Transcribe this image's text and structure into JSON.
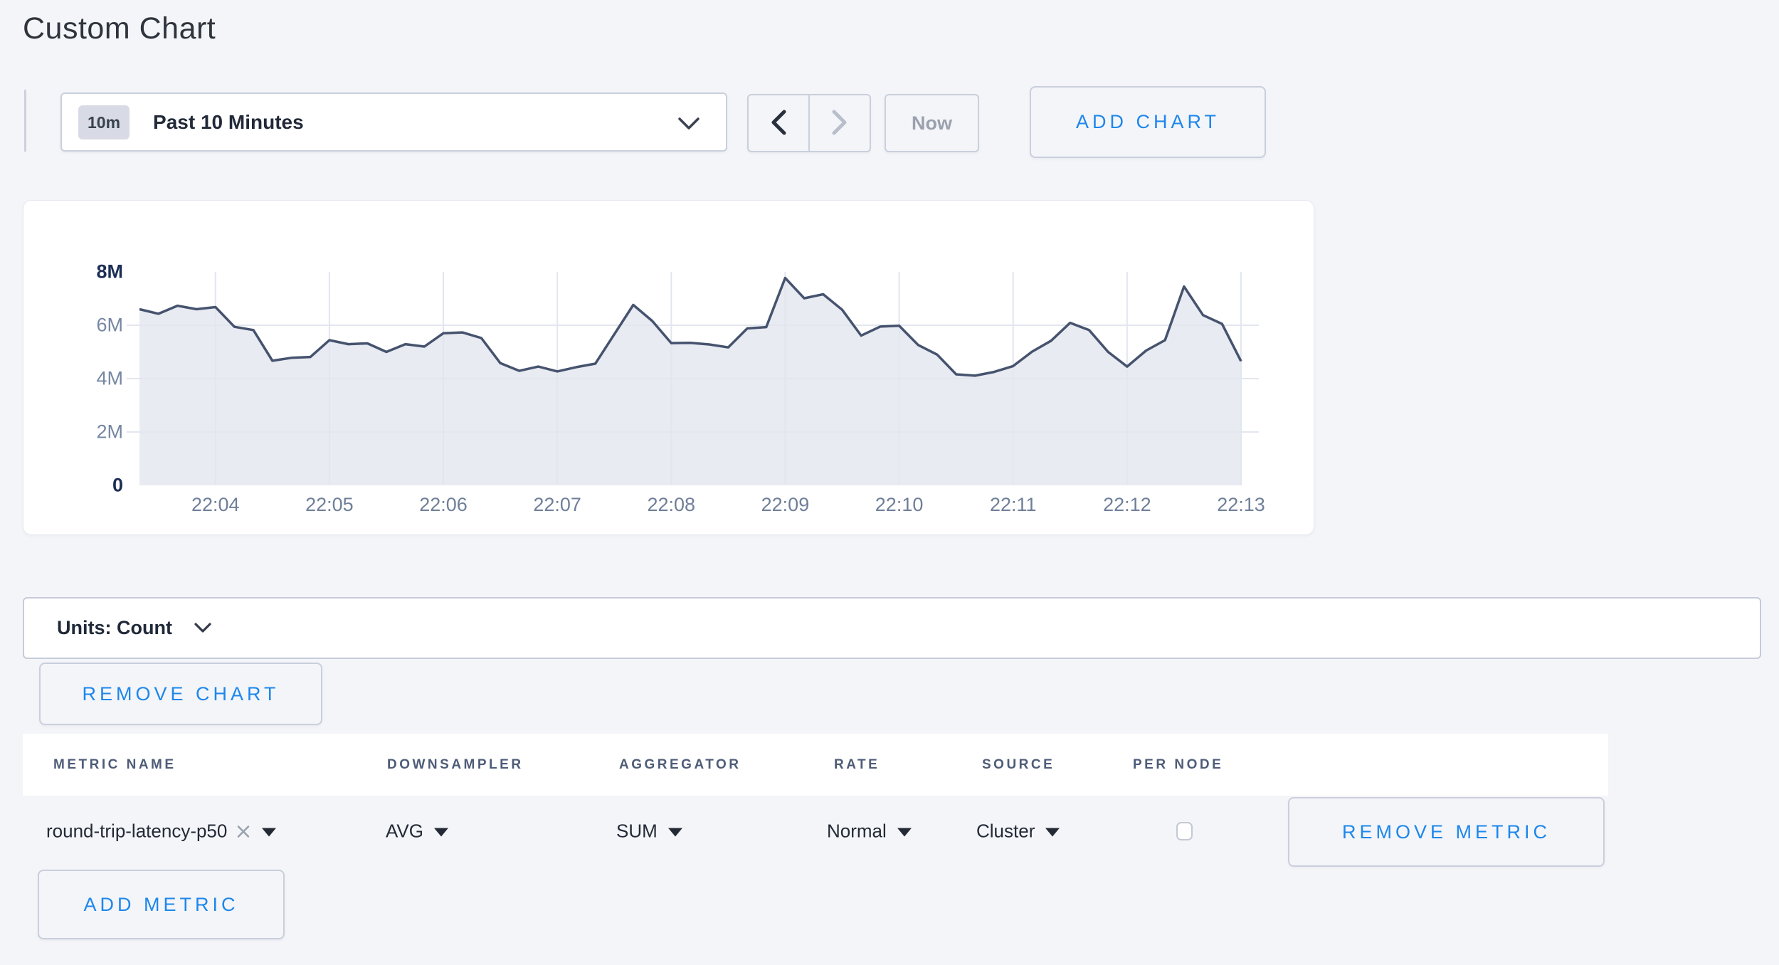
{
  "title": "Custom Chart",
  "toolbar": {
    "range_badge": "10m",
    "range_label": "Past 10 Minutes",
    "now_label": "Now",
    "add_chart_label": "ADD CHART"
  },
  "chart_controls": {
    "units_label": "Units: Count",
    "remove_chart_label": "REMOVE CHART"
  },
  "metrics_table": {
    "columns": [
      "METRIC NAME",
      "DOWNSAMPLER",
      "AGGREGATOR",
      "RATE",
      "SOURCE",
      "PER NODE"
    ],
    "row": {
      "metric_name": "round-trip-latency-p50",
      "downsampler": "AVG",
      "aggregator": "SUM",
      "rate": "Normal",
      "source": "Cluster",
      "per_node_checked": false
    },
    "remove_metric_label": "REMOVE METRIC",
    "add_metric_label": "ADD METRIC"
  },
  "colors": {
    "accent_blue": "#1d87ec",
    "chart_line": "#46536e",
    "chart_fill": "#e9ebf2",
    "grid_line": "#e2e6ee",
    "axis_strong": "#1b2e55",
    "axis_muted": "#7687a2"
  },
  "chart_data": {
    "type": "area",
    "title": "",
    "xlabel": "",
    "ylabel": "",
    "series": [
      {
        "name": "round-trip-latency-p50",
        "unit": "count",
        "values_millions": [
          6.6,
          6.43,
          6.73,
          6.6,
          6.68,
          5.94,
          5.82,
          4.67,
          4.78,
          4.81,
          5.44,
          5.29,
          5.32,
          5.0,
          5.29,
          5.2,
          5.7,
          5.73,
          5.52,
          4.58,
          4.29,
          4.45,
          4.27,
          4.43,
          4.56,
          5.66,
          6.76,
          6.16,
          5.33,
          5.34,
          5.28,
          5.17,
          5.88,
          5.93,
          7.77,
          7.01,
          7.16,
          6.58,
          5.61,
          5.95,
          5.98,
          5.26,
          4.9,
          4.16,
          4.11,
          4.25,
          4.47,
          5.01,
          5.42,
          6.09,
          5.82,
          5.0,
          4.45,
          5.05,
          5.44,
          7.45,
          6.38,
          6.05,
          4.65
        ]
      }
    ],
    "x_start": "22:03:20",
    "sample_interval_seconds": 10,
    "x_ticks": [
      "22:04",
      "22:05",
      "22:06",
      "22:07",
      "22:08",
      "22:09",
      "22:10",
      "22:11",
      "22:12",
      "22:13"
    ],
    "x_tick_start_index": 4,
    "x_tick_step": 6,
    "y_ticks": [
      "0",
      "2M",
      "4M",
      "6M",
      "8M"
    ],
    "ylim_millions": [
      0,
      8
    ],
    "grid": true,
    "legend": false
  }
}
